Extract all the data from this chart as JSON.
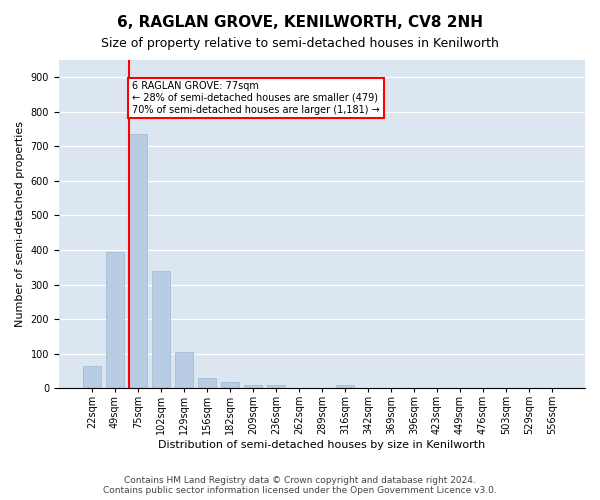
{
  "title": "6, RAGLAN GROVE, KENILWORTH, CV8 2NH",
  "subtitle": "Size of property relative to semi-detached houses in Kenilworth",
  "xlabel": "Distribution of semi-detached houses by size in Kenilworth",
  "ylabel": "Number of semi-detached properties",
  "categories": [
    "22sqm",
    "49sqm",
    "75sqm",
    "102sqm",
    "129sqm",
    "156sqm",
    "182sqm",
    "209sqm",
    "236sqm",
    "262sqm",
    "289sqm",
    "316sqm",
    "342sqm",
    "369sqm",
    "396sqm",
    "423sqm",
    "449sqm",
    "476sqm",
    "503sqm",
    "529sqm",
    "556sqm"
  ],
  "bar_values": [
    65,
    395,
    735,
    340,
    105,
    30,
    17,
    10,
    8,
    0,
    0,
    8,
    0,
    0,
    0,
    0,
    0,
    0,
    0,
    0,
    0
  ],
  "bar_color": "#b8cce4",
  "bar_edge_color": "#9db8d2",
  "property_line_x": 2,
  "annotation_text_line1": "6 RAGLAN GROVE: 77sqm",
  "annotation_text_line2": "← 28% of semi-detached houses are smaller (479)",
  "annotation_text_line3": "70% of semi-detached houses are larger (1,181) →",
  "grid_color": "#dce6f1",
  "background_color": "#dce6f1",
  "ylim": [
    0,
    950
  ],
  "yticks": [
    0,
    100,
    200,
    300,
    400,
    500,
    600,
    700,
    800,
    900
  ],
  "footer_line1": "Contains HM Land Registry data © Crown copyright and database right 2024.",
  "footer_line2": "Contains public sector information licensed under the Open Government Licence v3.0.",
  "title_fontsize": 11,
  "subtitle_fontsize": 9,
  "label_fontsize": 8,
  "tick_fontsize": 7,
  "footer_fontsize": 6.5
}
